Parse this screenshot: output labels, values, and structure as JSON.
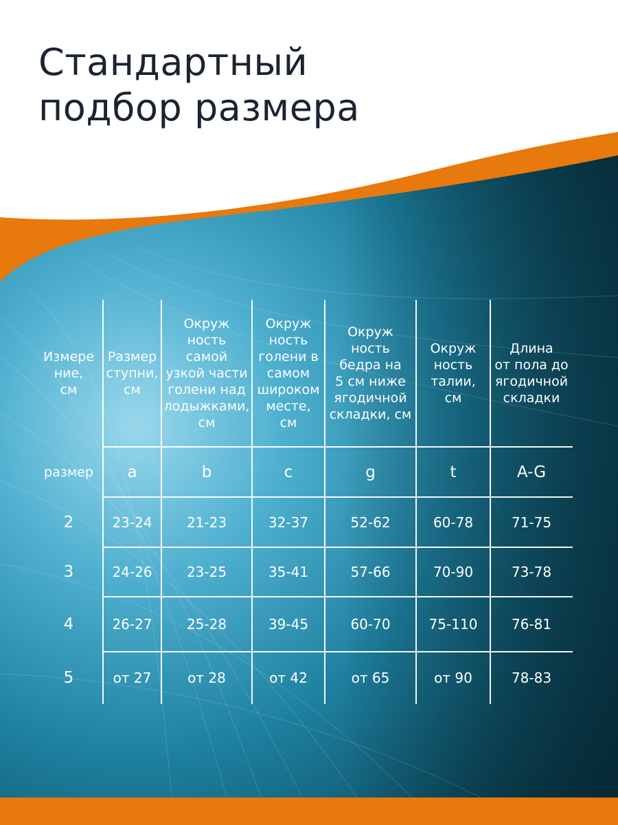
{
  "title": [
    "Стандартный",
    "подбор размера"
  ],
  "colors": {
    "orange": "#e8790d",
    "teal_dark": "#0a3a4a",
    "teal_light": "#6fc3de",
    "title_text": "#1a2430",
    "grid": "#ffffff"
  },
  "table": {
    "headers": [
      "Измере\nние,\nсм",
      "Размер\nступни,\nсм",
      "Окруж\nность\nсамой\nузкой части\nголени над\nлодыжками,\nсм",
      "Окруж\nность\nголени в\nсамом\nшироком\nместе,\nсм",
      "Окруж\nность\nбедра на\n5 см ниже\nягодичной\nскладки, см",
      "Окруж\nность\nталии,\nсм",
      "Длина\nот пола до\nягодичной\nскладки"
    ],
    "symbols": [
      "размер",
      "a",
      "b",
      "c",
      "g",
      "t",
      "A-G"
    ],
    "rows": [
      [
        "2",
        "23-24",
        "21-23",
        "32-37",
        "52-62",
        "60-78",
        "71-75"
      ],
      [
        "3",
        "24-26",
        "23-25",
        "35-41",
        "57-66",
        "70-90",
        "73-78"
      ],
      [
        "4",
        "26-27",
        "25-28",
        "39-45",
        "60-70",
        "75-110",
        "76-81"
      ],
      [
        "5",
        "от 27",
        "от 28",
        "от 42",
        "от 65",
        "от 90",
        "78-83"
      ]
    ]
  }
}
